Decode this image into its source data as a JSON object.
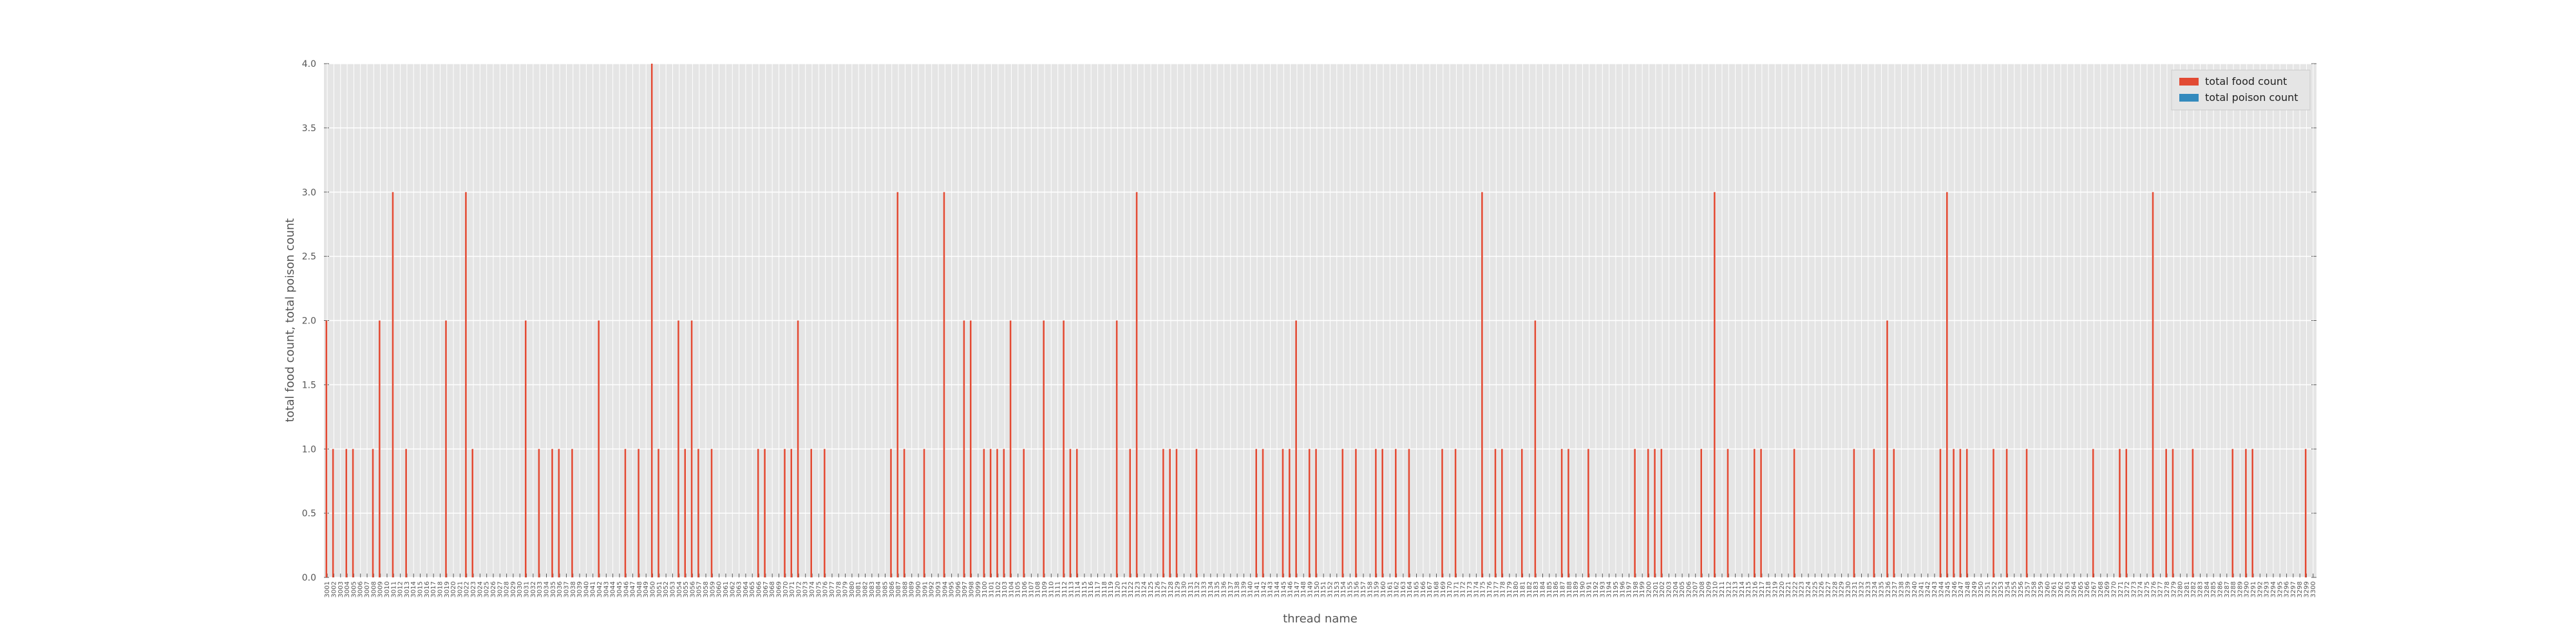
{
  "chart_data": {
    "type": "bar",
    "xlabel": "thread name",
    "ylabel": "total food count, total poison count",
    "ylim": [
      0,
      4
    ],
    "yticks": [
      {
        "value": 0,
        "label": "0.0"
      },
      {
        "value": 0.5,
        "label": "0.5"
      },
      {
        "value": 1,
        "label": "1.0"
      },
      {
        "value": 1.5,
        "label": "1.5"
      },
      {
        "value": 2,
        "label": "2.0"
      },
      {
        "value": 2.5,
        "label": "2.5"
      },
      {
        "value": 3,
        "label": "3.0"
      },
      {
        "value": 3.5,
        "label": "3.5"
      },
      {
        "value": 4,
        "label": "4.0"
      }
    ],
    "grid": true,
    "legend": "upper right",
    "categories": [
      "3001",
      "3002",
      "3003",
      "3004",
      "3005",
      "3006",
      "3007",
      "3008",
      "3009",
      "3010",
      "3011",
      "3012",
      "3013",
      "3014",
      "3015",
      "3016",
      "3017",
      "3018",
      "3019",
      "3020",
      "3021",
      "3022",
      "3023",
      "3024",
      "3025",
      "3026",
      "3027",
      "3028",
      "3029",
      "3030",
      "3031",
      "3032",
      "3033",
      "3034",
      "3035",
      "3036",
      "3037",
      "3038",
      "3039",
      "3040",
      "3041",
      "3042",
      "3043",
      "3044",
      "3045",
      "3046",
      "3047",
      "3048",
      "3049",
      "3050",
      "3051",
      "3052",
      "3053",
      "3054",
      "3055",
      "3056",
      "3057",
      "3058",
      "3059",
      "3060",
      "3061",
      "3062",
      "3063",
      "3064",
      "3065",
      "3066",
      "3067",
      "3068",
      "3069",
      "3070",
      "3071",
      "3072",
      "3073",
      "3074",
      "3075",
      "3076",
      "3077",
      "3078",
      "3079",
      "3080",
      "3081",
      "3082",
      "3083",
      "3084",
      "3085",
      "3086",
      "3087",
      "3088",
      "3089",
      "3090",
      "3091",
      "3092",
      "3093",
      "3094",
      "3095",
      "3096",
      "3097",
      "3098",
      "3099",
      "3100",
      "3101",
      "3102",
      "3103",
      "3104",
      "3105",
      "3106",
      "3107",
      "3108",
      "3109",
      "3110",
      "3111",
      "3112",
      "3113",
      "3114",
      "3115",
      "3116",
      "3117",
      "3118",
      "3119",
      "3120",
      "3121",
      "3122",
      "3123",
      "3124",
      "3125",
      "3126",
      "3127",
      "3128",
      "3129",
      "3130",
      "3131",
      "3132",
      "3133",
      "3134",
      "3135",
      "3136",
      "3137",
      "3138",
      "3139",
      "3140",
      "3141",
      "3142",
      "3143",
      "3144",
      "3145",
      "3146",
      "3147",
      "3148",
      "3149",
      "3150",
      "3151",
      "3152",
      "3153",
      "3154",
      "3155",
      "3156",
      "3157",
      "3158",
      "3159",
      "3160",
      "3161",
      "3162",
      "3163",
      "3164",
      "3165",
      "3166",
      "3167",
      "3168",
      "3169",
      "3170",
      "3171",
      "3172",
      "3173",
      "3174",
      "3175",
      "3176",
      "3177",
      "3178",
      "3179",
      "3180",
      "3181",
      "3182",
      "3183",
      "3184",
      "3185",
      "3186",
      "3187",
      "3188",
      "3189",
      "3190",
      "3191",
      "3192",
      "3193",
      "3194",
      "3195",
      "3196",
      "3197",
      "3198",
      "3199",
      "3200",
      "3201",
      "3202",
      "3203",
      "3204",
      "3205",
      "3206",
      "3207",
      "3208",
      "3209",
      "3210",
      "3211",
      "3212",
      "3213",
      "3214",
      "3215",
      "3216",
      "3217",
      "3218",
      "3219",
      "3220",
      "3221",
      "3222",
      "3223",
      "3224",
      "3225",
      "3226",
      "3227",
      "3228",
      "3229",
      "3230",
      "3231",
      "3232",
      "3233",
      "3234",
      "3235",
      "3236",
      "3237",
      "3238",
      "3239",
      "3240",
      "3241",
      "3242",
      "3243",
      "3244",
      "3245",
      "3246",
      "3247",
      "3248",
      "3249",
      "3250",
      "3251",
      "3252",
      "3253",
      "3254",
      "3255",
      "3256",
      "3257",
      "3258",
      "3259",
      "3260",
      "3261",
      "3262",
      "3263",
      "3264",
      "3265",
      "3266",
      "3267",
      "3268",
      "3269",
      "3270",
      "3271",
      "3272",
      "3273",
      "3274",
      "3275",
      "3276",
      "3277",
      "3278",
      "3279",
      "3280",
      "3281",
      "3282",
      "3283",
      "3284",
      "3285",
      "3286",
      "3287",
      "3288",
      "3289",
      "3290",
      "3291",
      "3292",
      "3293",
      "3294",
      "3295",
      "3296",
      "3297",
      "3298",
      "3299",
      "3300"
    ],
    "series": [
      {
        "name": "total food count",
        "color": "#e24a33",
        "values": [
          2,
          1,
          0,
          1,
          1,
          0,
          0,
          1,
          2,
          0,
          3,
          0,
          1,
          0,
          0,
          0,
          0,
          0,
          2,
          0,
          0,
          3,
          1,
          0,
          0,
          0,
          0,
          0,
          0,
          0,
          2,
          0,
          1,
          0,
          1,
          1,
          0,
          1,
          0,
          0,
          0,
          2,
          0,
          0,
          0,
          1,
          0,
          1,
          0,
          4,
          1,
          0,
          0,
          2,
          1,
          2,
          1,
          0,
          1,
          0,
          0,
          0,
          0,
          0,
          0,
          1,
          1,
          0,
          0,
          1,
          1,
          2,
          0,
          1,
          0,
          1,
          0,
          0,
          0,
          0,
          0,
          0,
          0,
          0,
          0,
          1,
          3,
          1,
          0,
          0,
          1,
          0,
          0,
          3,
          0,
          0,
          2,
          2,
          0,
          1,
          1,
          1,
          1,
          2,
          0,
          1,
          0,
          0,
          2,
          0,
          0,
          2,
          1,
          1,
          0,
          0,
          0,
          0,
          0,
          2,
          0,
          1,
          3,
          0,
          0,
          0,
          1,
          1,
          1,
          0,
          0,
          1,
          0,
          0,
          0,
          0,
          0,
          0,
          0,
          0,
          1,
          1,
          0,
          0,
          1,
          1,
          2,
          0,
          1,
          1,
          0,
          0,
          0,
          1,
          0,
          1,
          0,
          0,
          1,
          1,
          0,
          1,
          0,
          1,
          0,
          0,
          0,
          0,
          1,
          0,
          1,
          0,
          0,
          0,
          3,
          0,
          1,
          1,
          0,
          0,
          1,
          0,
          2,
          0,
          0,
          0,
          1,
          1,
          0,
          0,
          1,
          0,
          0,
          0,
          0,
          0,
          0,
          1,
          0,
          1,
          1,
          1,
          0,
          0,
          0,
          0,
          0,
          1,
          0,
          3,
          0,
          1,
          0,
          0,
          0,
          1,
          1,
          0,
          0,
          0,
          0,
          1,
          0,
          0,
          0,
          0,
          0,
          0,
          0,
          0,
          1,
          0,
          0,
          1,
          0,
          2,
          1,
          0,
          0,
          0,
          0,
          0,
          0,
          1,
          3,
          1,
          1,
          1,
          0,
          0,
          0,
          1,
          0,
          1,
          0,
          0,
          1,
          0,
          0,
          0,
          0,
          0,
          0,
          0,
          0,
          0,
          1,
          0,
          0,
          0,
          1,
          1,
          0,
          0,
          0,
          3,
          0,
          1,
          1,
          0,
          0,
          1,
          0,
          0,
          0,
          0,
          0,
          1,
          0,
          1,
          1,
          0,
          0,
          0,
          0,
          0,
          0,
          0,
          1,
          0
        ]
      },
      {
        "name": "total poison count",
        "color": "#348abd",
        "values": [
          0,
          0,
          0,
          0,
          0,
          0,
          0,
          0,
          0,
          0,
          0,
          0,
          0,
          0,
          0,
          0,
          0,
          0,
          0,
          0,
          0,
          0,
          0,
          0,
          0,
          0,
          0,
          0,
          0,
          0,
          0,
          0,
          0,
          0,
          0,
          0,
          0,
          0,
          0,
          0,
          0,
          0,
          0,
          0,
          0,
          0,
          0,
          0,
          0,
          0,
          0,
          0,
          0,
          0,
          0,
          0,
          0,
          0,
          0,
          0,
          0,
          0,
          0,
          0,
          0,
          0,
          0,
          0,
          0,
          0,
          0,
          0,
          0,
          0,
          0,
          0,
          0,
          0,
          0,
          0,
          0,
          0,
          0,
          0,
          0,
          0,
          0,
          0,
          0,
          0,
          0,
          0,
          0,
          0,
          0,
          0,
          0,
          0,
          0,
          0,
          0,
          0,
          0,
          0,
          0,
          0,
          0,
          0,
          0,
          0,
          0,
          0,
          0,
          0,
          0,
          0,
          0,
          0,
          0,
          0,
          0,
          0,
          0,
          0,
          0,
          0,
          0,
          0,
          0,
          0,
          0,
          0,
          0,
          0,
          0,
          0,
          0,
          0,
          0,
          0,
          0,
          0,
          0,
          0,
          0,
          0,
          0,
          0,
          0,
          0,
          0,
          0,
          0,
          0,
          0,
          0,
          0,
          0,
          0,
          0,
          0,
          0,
          0,
          0,
          0,
          0,
          0,
          0,
          0,
          0,
          0,
          0,
          0,
          0,
          0,
          0,
          0,
          0,
          0,
          0,
          0,
          0,
          0,
          0,
          0,
          0,
          0,
          0,
          0,
          0,
          0,
          0,
          0,
          0,
          0,
          0,
          0,
          0,
          0,
          0,
          0,
          0,
          0,
          0,
          0,
          0,
          0,
          0,
          0,
          0,
          0,
          0,
          0,
          0,
          0,
          0,
          0,
          0,
          0,
          0,
          0,
          0,
          0,
          0,
          0,
          0,
          0,
          0,
          0,
          0,
          0,
          0,
          0,
          0,
          0,
          0,
          0,
          0,
          0,
          0,
          0,
          0,
          0,
          0,
          0,
          0,
          0,
          0,
          0,
          0,
          0,
          0,
          0,
          0,
          0,
          0,
          0,
          0,
          0,
          0,
          0,
          0,
          0,
          0,
          0,
          0,
          0,
          0,
          0,
          0,
          0,
          0,
          0,
          0,
          0,
          0,
          0,
          0,
          0,
          0,
          0,
          0,
          0,
          0,
          0,
          0,
          0,
          0,
          0,
          0,
          0,
          0,
          0,
          0,
          0,
          0,
          0,
          0,
          0,
          0
        ]
      }
    ]
  }
}
